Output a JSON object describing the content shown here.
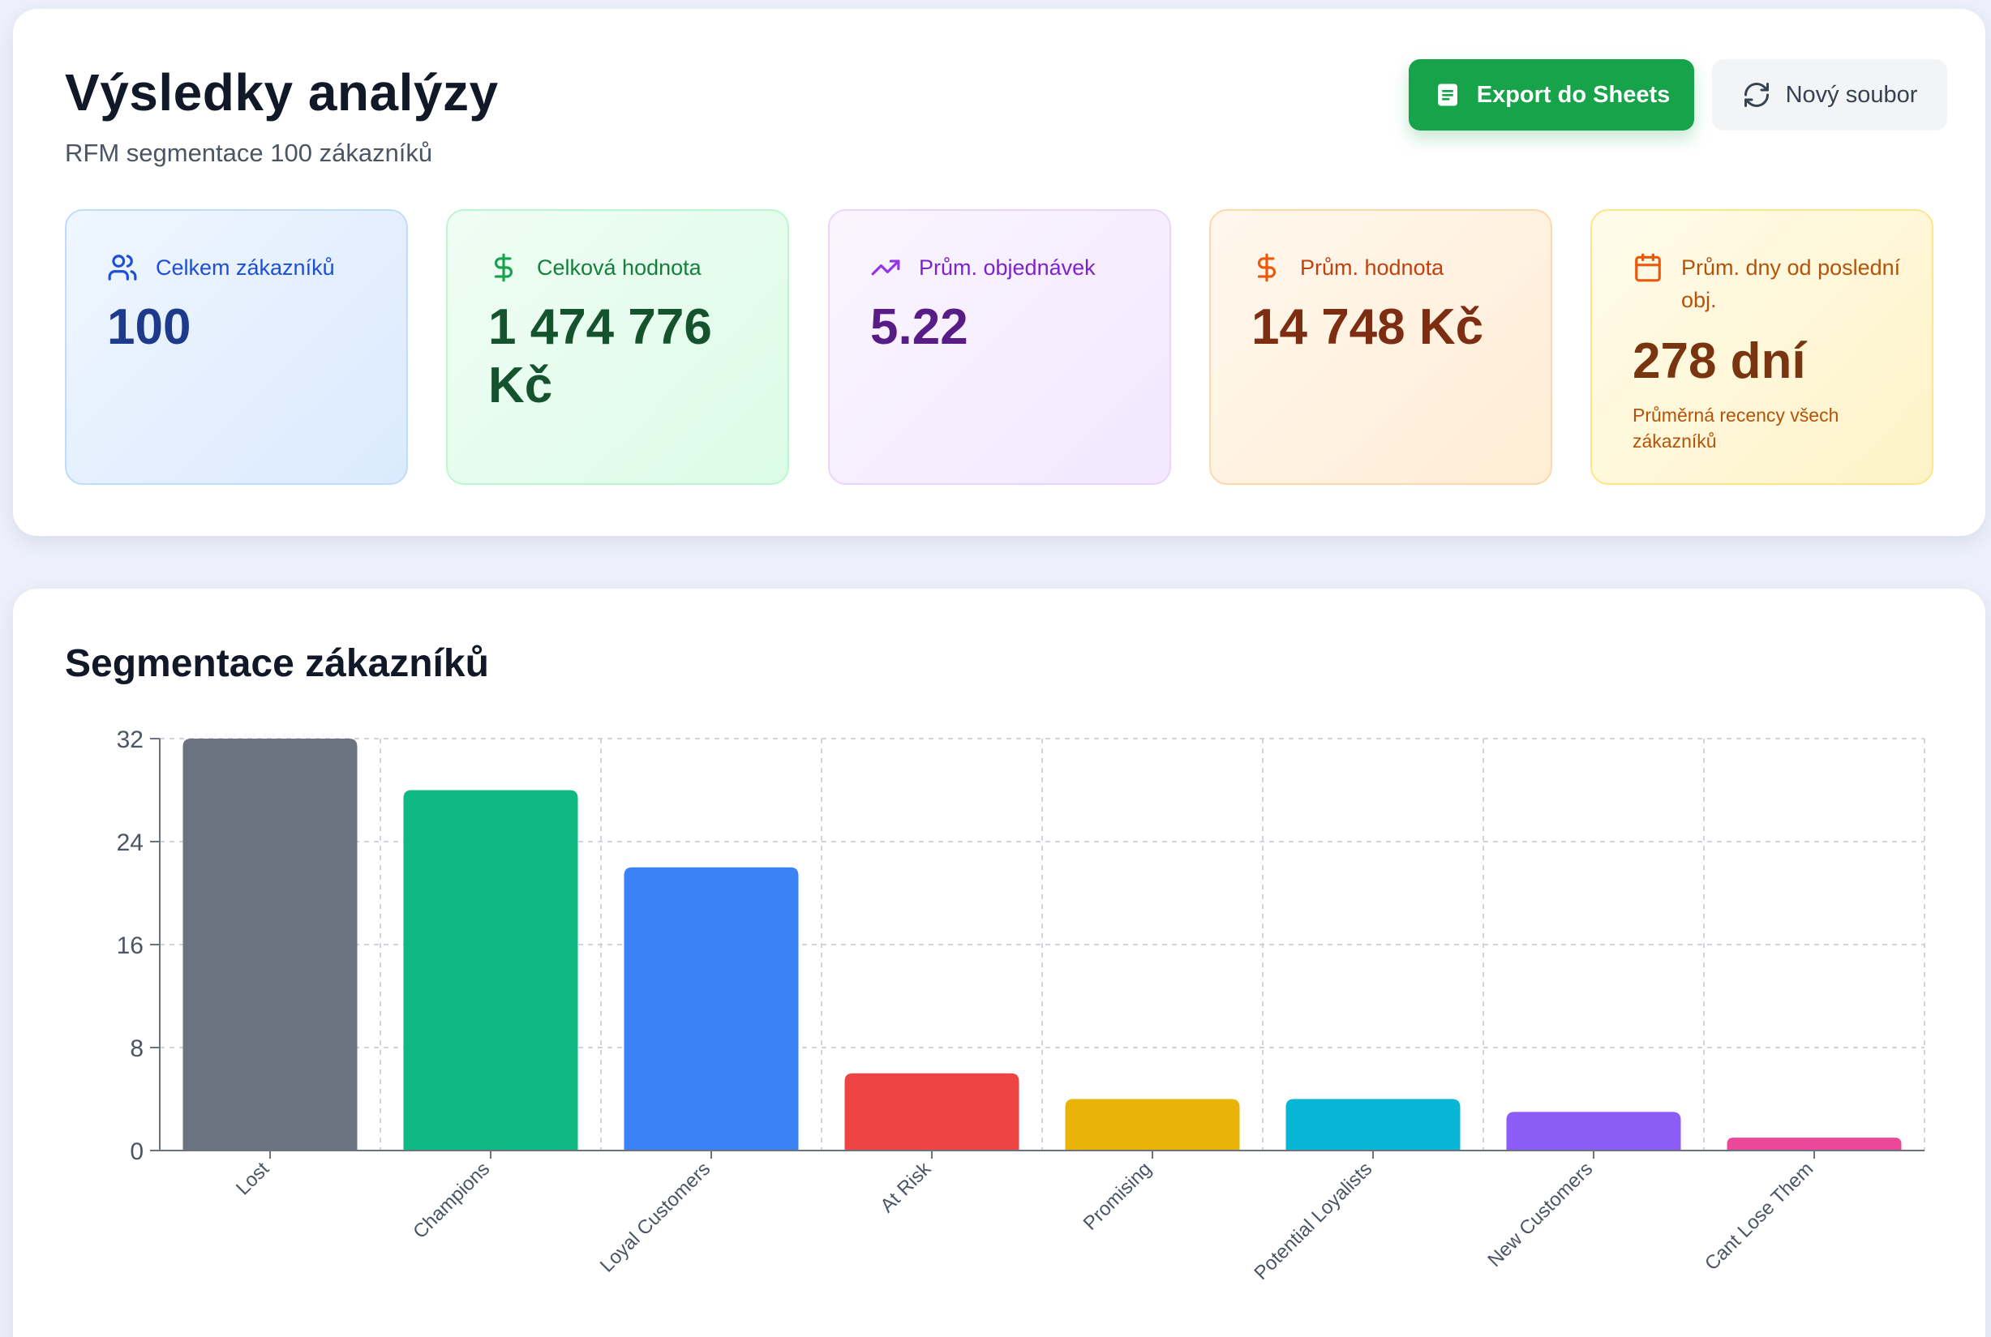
{
  "header": {
    "title": "Výsledky analýzy",
    "subtitle": "RFM segmentace 100 zákazníků",
    "export_label": "Export do Sheets",
    "new_file_label": "Nový soubor"
  },
  "stats": {
    "customers": {
      "label": "Celkem zákazníků",
      "value": "100",
      "icon": "users-icon"
    },
    "total": {
      "label": "Celková hodnota",
      "value": "1 474 776 Kč",
      "icon": "dollar-icon"
    },
    "orders": {
      "label": "Prům. objednávek",
      "value": "5.22",
      "icon": "trending-up-icon"
    },
    "avg_value": {
      "label": "Prům. hodnota",
      "value": "14 748 Kč",
      "icon": "dollar-icon"
    },
    "recency": {
      "label": "Prům. dny od poslední obj.",
      "value": "278 dní",
      "note": "Průměrná recency všech zákazníků",
      "icon": "calendar-icon"
    }
  },
  "chart_section": {
    "title": "Segmentace zákazníků"
  },
  "chart_data": {
    "type": "bar",
    "categories": [
      "Lost",
      "Champions",
      "Loyal Customers",
      "At Risk",
      "Promising",
      "Potential Loyalists",
      "New Customers",
      "Cant Lose Them"
    ],
    "values": [
      32,
      28,
      22,
      6,
      4,
      4,
      3,
      1
    ],
    "colors": [
      "#6b7280",
      "#10b981",
      "#3b82f6",
      "#ef4444",
      "#eab308",
      "#06b6d4",
      "#8b5cf6",
      "#ec4899"
    ],
    "yticks": [
      "0",
      "8",
      "16",
      "24",
      "32"
    ],
    "ylim": [
      0,
      32
    ],
    "grid": true,
    "xlabel": "",
    "ylabel": ""
  }
}
